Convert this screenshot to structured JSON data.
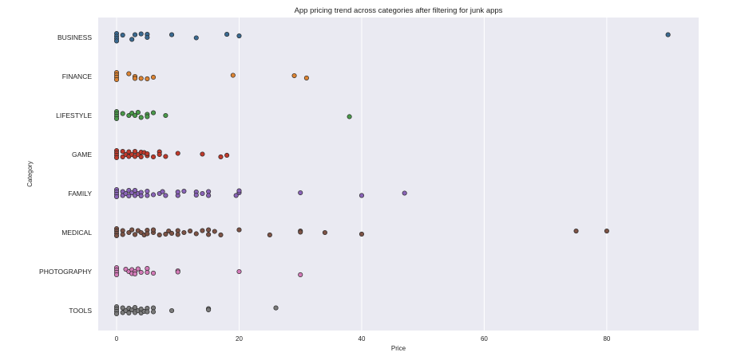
{
  "chart_data": {
    "type": "scatter",
    "subtype": "strip",
    "title": "App pricing trend across categories after filtering for junk apps",
    "xlabel": "Price",
    "ylabel": "Category",
    "xlim": [
      -3,
      95
    ],
    "xticks": [
      0,
      20,
      40,
      60,
      80
    ],
    "grid": true,
    "background": "#eaeaf2",
    "categories": [
      "BUSINESS",
      "FINANCE",
      "LIFESTYLE",
      "GAME",
      "FAMILY",
      "MEDICAL",
      "PHOTOGRAPHY",
      "TOOLS"
    ],
    "series": [
      {
        "category": "BUSINESS",
        "color": "#3a6a92",
        "points": [
          [
            0,
            -0.1
          ],
          [
            0,
            -0.03
          ],
          [
            0,
            0.03
          ],
          [
            0,
            0.09
          ],
          [
            1,
            -0.06
          ],
          [
            2.5,
            0.05
          ],
          [
            3,
            -0.07
          ],
          [
            4,
            -0.09
          ],
          [
            5,
            -0.08
          ],
          [
            5,
            0.0
          ],
          [
            9,
            -0.07
          ],
          [
            13,
            0.01
          ],
          [
            18,
            -0.08
          ],
          [
            20,
            -0.04
          ],
          [
            90,
            -0.07
          ]
        ]
      },
      {
        "category": "FINANCE",
        "color": "#dd8433",
        "points": [
          [
            0,
            -0.1
          ],
          [
            0,
            -0.04
          ],
          [
            0,
            0.02
          ],
          [
            0,
            0.08
          ],
          [
            2,
            -0.07
          ],
          [
            3,
            0.0
          ],
          [
            3,
            0.05
          ],
          [
            4,
            0.05
          ],
          [
            5,
            0.06
          ],
          [
            6,
            0.02
          ],
          [
            19,
            -0.03
          ],
          [
            29,
            -0.02
          ],
          [
            31,
            0.04
          ]
        ]
      },
      {
        "category": "LIFESTYLE",
        "color": "#4a9a4a",
        "points": [
          [
            0,
            -0.1
          ],
          [
            0,
            -0.04
          ],
          [
            0,
            0.02
          ],
          [
            0,
            0.08
          ],
          [
            1,
            -0.05
          ],
          [
            2,
            0.0
          ],
          [
            2.5,
            -0.06
          ],
          [
            3,
            0.0
          ],
          [
            3.5,
            -0.08
          ],
          [
            4,
            0.05
          ],
          [
            5,
            -0.03
          ],
          [
            5,
            0.03
          ],
          [
            6,
            -0.07
          ],
          [
            8,
            0.0
          ],
          [
            38,
            0.03
          ]
        ]
      },
      {
        "category": "GAME",
        "color": "#c0392b",
        "points": [
          [
            0,
            -0.1
          ],
          [
            0,
            -0.04
          ],
          [
            0,
            0.02
          ],
          [
            0,
            0.08
          ],
          [
            1,
            -0.08
          ],
          [
            1,
            0.06
          ],
          [
            1.5,
            0.0
          ],
          [
            2,
            -0.07
          ],
          [
            2,
            0.05
          ],
          [
            2.5,
            0.0
          ],
          [
            3,
            -0.08
          ],
          [
            3,
            0.05
          ],
          [
            3.5,
            0.0
          ],
          [
            4,
            -0.06
          ],
          [
            4,
            0.06
          ],
          [
            4.5,
            -0.05
          ],
          [
            5,
            0.03
          ],
          [
            5,
            -0.02
          ],
          [
            6,
            0.06
          ],
          [
            7,
            -0.07
          ],
          [
            7,
            0.0
          ],
          [
            8,
            0.05
          ],
          [
            10,
            -0.03
          ],
          [
            14,
            -0.01
          ],
          [
            17,
            0.06
          ],
          [
            18,
            0.02
          ]
        ]
      },
      {
        "category": "FAMILY",
        "color": "#8a64b8",
        "points": [
          [
            0,
            -0.1
          ],
          [
            0,
            -0.04
          ],
          [
            0,
            0.02
          ],
          [
            0,
            0.08
          ],
          [
            1,
            -0.05
          ],
          [
            1,
            0.05
          ],
          [
            1.5,
            0.0
          ],
          [
            2,
            -0.08
          ],
          [
            2,
            0.06
          ],
          [
            2.5,
            -0.02
          ],
          [
            3,
            -0.08
          ],
          [
            3,
            0.05
          ],
          [
            3.5,
            0.0
          ],
          [
            4,
            -0.03
          ],
          [
            4,
            0.06
          ],
          [
            5,
            -0.06
          ],
          [
            5,
            0.05
          ],
          [
            6,
            0.03
          ],
          [
            7,
            0.0
          ],
          [
            7.5,
            -0.05
          ],
          [
            8,
            0.05
          ],
          [
            10,
            0.05
          ],
          [
            10,
            -0.04
          ],
          [
            11,
            -0.06
          ],
          [
            13,
            -0.04
          ],
          [
            13,
            0.04
          ],
          [
            14,
            0.0
          ],
          [
            15,
            -0.05
          ],
          [
            15,
            0.05
          ],
          [
            19.5,
            0.05
          ],
          [
            20,
            -0.02
          ],
          [
            20,
            -0.07
          ],
          [
            30,
            -0.02
          ],
          [
            40,
            0.05
          ],
          [
            47,
            -0.01
          ]
        ]
      },
      {
        "category": "MEDICAL",
        "color": "#7d5346",
        "points": [
          [
            0,
            -0.1
          ],
          [
            0,
            -0.04
          ],
          [
            0,
            0.02
          ],
          [
            0,
            0.08
          ],
          [
            1,
            -0.05
          ],
          [
            1,
            0.05
          ],
          [
            2,
            0.0
          ],
          [
            2.5,
            -0.07
          ],
          [
            3,
            0.05
          ],
          [
            3.5,
            -0.05
          ],
          [
            4,
            0.0
          ],
          [
            4.5,
            0.06
          ],
          [
            5,
            -0.06
          ],
          [
            5,
            0.03
          ],
          [
            6,
            0.0
          ],
          [
            6,
            -0.07
          ],
          [
            7,
            0.06
          ],
          [
            8,
            0.04
          ],
          [
            8.5,
            -0.04
          ],
          [
            9,
            0.02
          ],
          [
            10,
            -0.05
          ],
          [
            10,
            0.05
          ],
          [
            11,
            0.0
          ],
          [
            12,
            -0.04
          ],
          [
            13,
            0.03
          ],
          [
            14,
            -0.05
          ],
          [
            15,
            -0.07
          ],
          [
            15,
            0.05
          ],
          [
            16,
            -0.03
          ],
          [
            17,
            0.06
          ],
          [
            20,
            -0.07
          ],
          [
            25,
            0.06
          ],
          [
            30,
            -0.04
          ],
          [
            30,
            -0.01
          ],
          [
            34,
            0.0
          ],
          [
            40,
            0.04
          ],
          [
            75,
            -0.04
          ],
          [
            80,
            -0.04
          ]
        ]
      },
      {
        "category": "PHOTOGRAPHY",
        "color": "#d37bb8",
        "points": [
          [
            0,
            -0.1
          ],
          [
            0,
            -0.04
          ],
          [
            0,
            0.02
          ],
          [
            0,
            0.08
          ],
          [
            1.5,
            -0.06
          ],
          [
            2,
            0.0
          ],
          [
            2.5,
            -0.05
          ],
          [
            2.5,
            0.05
          ],
          [
            3,
            0.0
          ],
          [
            3,
            0.06
          ],
          [
            3.5,
            -0.07
          ],
          [
            4,
            0.02
          ],
          [
            5,
            -0.08
          ],
          [
            5,
            0.02
          ],
          [
            6,
            0.04
          ],
          [
            10,
            -0.02
          ],
          [
            10,
            0.01
          ],
          [
            20,
            0.0
          ],
          [
            30,
            0.08
          ]
        ]
      },
      {
        "category": "TOOLS",
        "color": "#7a7a7a",
        "points": [
          [
            0,
            -0.1
          ],
          [
            0,
            -0.04
          ],
          [
            0,
            0.02
          ],
          [
            0,
            0.08
          ],
          [
            1,
            -0.07
          ],
          [
            1,
            0.05
          ],
          [
            1.5,
            0.0
          ],
          [
            2,
            -0.06
          ],
          [
            2,
            0.06
          ],
          [
            2.5,
            -0.02
          ],
          [
            3,
            -0.08
          ],
          [
            3,
            0.05
          ],
          [
            3.5,
            0.0
          ],
          [
            4,
            -0.04
          ],
          [
            4,
            0.06
          ],
          [
            4.5,
            0.02
          ],
          [
            5,
            -0.06
          ],
          [
            5,
            0.03
          ],
          [
            6,
            -0.07
          ],
          [
            6,
            0.03
          ],
          [
            9,
            0.0
          ],
          [
            15,
            -0.05
          ],
          [
            15,
            -0.02
          ],
          [
            26,
            -0.07
          ]
        ]
      }
    ]
  }
}
